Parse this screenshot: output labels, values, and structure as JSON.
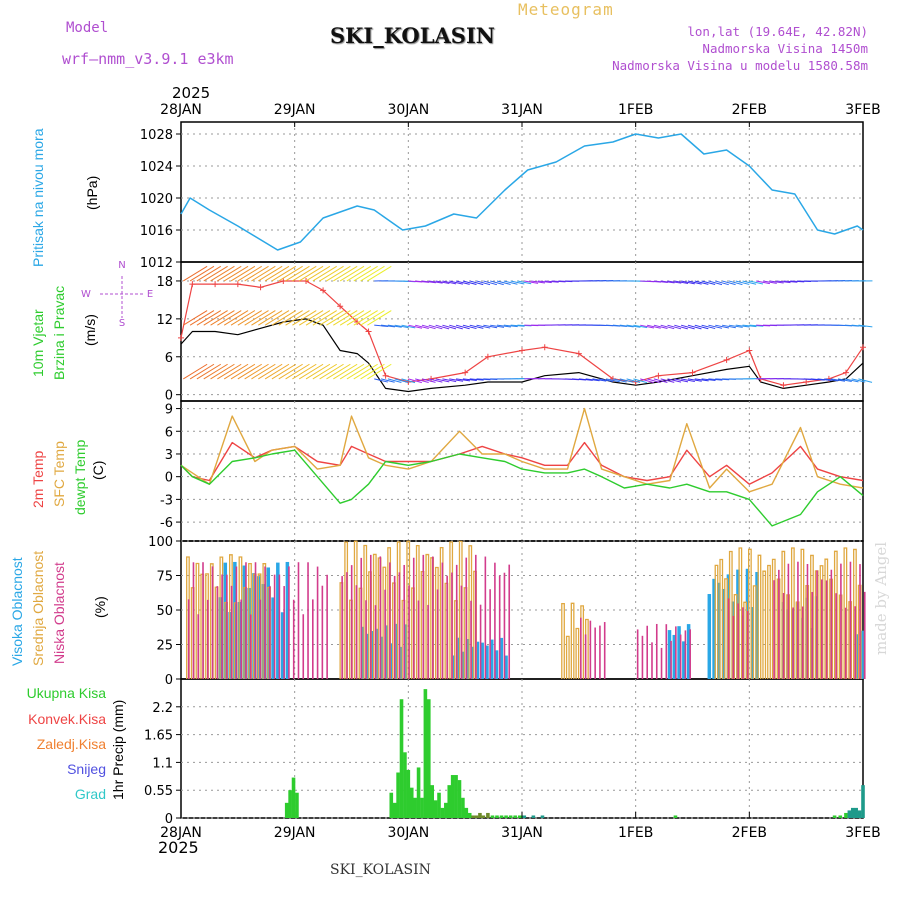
{
  "header": {
    "model_label": "Model",
    "model_name": "wrf—nmm_v3.9.1 e3km",
    "station": "SKI_KOLASIN",
    "product": "Meteogram",
    "lonlat": "lon,lat (19.64E, 42.82N)",
    "elevation": "Nadmorska Visina 1450m",
    "model_elevation": "Nadmorska Visina u modelu 1580.58m",
    "year": "2025"
  },
  "footer": {
    "station": "SKI_KOLASIN",
    "year": "2025",
    "watermark": "made by Angel"
  },
  "x_axis": {
    "labels": [
      "28JAN",
      "29JAN",
      "30JAN",
      "31JAN",
      "1FEB",
      "2FEB",
      "3FEB"
    ]
  },
  "wind_compass": {
    "n": "N",
    "e": "E",
    "w": "W",
    "s": "S"
  },
  "colors": {
    "pressure": "#2aa7e6",
    "wind_speed": "#000000",
    "gust": "#ee4444",
    "temp_2m": "#ee4444",
    "temp_sfc": "#e0a840",
    "dewpoint": "#2ecc2e",
    "cloud_high": "#2aa7e6",
    "cloud_mid": "#e0a840",
    "cloud_low": "#d23c8c",
    "precip_total": "#2ecc2e",
    "precip_conv": "#ee4444",
    "precip_frozen": "#f08030",
    "precip_snow": "#5050e0",
    "precip_hail": "#30c8c8"
  },
  "chart_data": [
    {
      "type": "line",
      "id": "pressure",
      "title": "Pritisak na nivou mora",
      "ylabel": "(hPa)",
      "ylim": [
        1012,
        1029.5
      ],
      "yticks": [
        1012,
        1016,
        1020,
        1024,
        1028
      ],
      "x_days": [
        0,
        0.08,
        0.25,
        0.5,
        0.85,
        1.05,
        1.25,
        1.55,
        1.7,
        1.95,
        2.15,
        2.4,
        2.6,
        2.85,
        3.05,
        3.3,
        3.55,
        3.8,
        4.0,
        4.2,
        4.4,
        4.6,
        4.8,
        5.0,
        5.2,
        5.4,
        5.6,
        5.75,
        5.95,
        6.0
      ],
      "series": [
        {
          "name": "MSLP",
          "values": [
            1018,
            1020,
            1018.5,
            1016.5,
            1013.5,
            1014.5,
            1017.5,
            1019,
            1018.5,
            1016,
            1016.5,
            1018,
            1017.5,
            1021,
            1023.5,
            1024.5,
            1026.5,
            1027,
            1028,
            1027.5,
            1028,
            1025.5,
            1026,
            1024,
            1021,
            1020.5,
            1016,
            1015.5,
            1016.5,
            1016
          ]
        }
      ]
    },
    {
      "type": "line",
      "id": "wind",
      "title": "10m Vjetar Brzina i Pravac",
      "ylabel": "(m/s)",
      "ylim": [
        -1,
        21
      ],
      "yticks": [
        0,
        6,
        12,
        18
      ],
      "x_days": [
        0,
        0.1,
        0.3,
        0.5,
        0.7,
        0.9,
        1.1,
        1.25,
        1.4,
        1.55,
        1.65,
        1.8,
        2.0,
        2.2,
        2.5,
        2.7,
        3.0,
        3.2,
        3.5,
        3.8,
        4.0,
        4.2,
        4.5,
        4.8,
        5.0,
        5.1,
        5.3,
        5.5,
        5.7,
        5.85,
        6.0
      ],
      "series": [
        {
          "name": "wind speed",
          "values": [
            8,
            10,
            10,
            9.5,
            10.5,
            11.5,
            12,
            11,
            7,
            6.5,
            5,
            1,
            0.5,
            1,
            1.5,
            2,
            2,
            3,
            3.5,
            2,
            1.5,
            2,
            3,
            4,
            4.5,
            2,
            1,
            1.5,
            2,
            2.5,
            5
          ]
        },
        {
          "name": "gust",
          "values": [
            9,
            17.5,
            17.5,
            17.5,
            17,
            18,
            18,
            16.5,
            14,
            11.5,
            10,
            3,
            2,
            2.5,
            3.5,
            6,
            7,
            7.5,
            6.5,
            2.5,
            2,
            3,
            3.5,
            5.5,
            7,
            2.5,
            1.5,
            2,
            2.5,
            3.5,
            7.5
          ]
        }
      ]
    },
    {
      "type": "line",
      "id": "temperature",
      "title": "2m Temp / SFC Temp / dewpt Temp",
      "ylabel": "(C)",
      "ylim": [
        -8.5,
        10
      ],
      "yticks": [
        -6,
        -3,
        0,
        3,
        6,
        9
      ],
      "x_days": [
        0,
        0.1,
        0.25,
        0.45,
        0.65,
        0.8,
        1.0,
        1.2,
        1.4,
        1.5,
        1.65,
        1.8,
        2.0,
        2.2,
        2.45,
        2.65,
        2.85,
        3.0,
        3.2,
        3.4,
        3.55,
        3.7,
        3.9,
        4.1,
        4.3,
        4.45,
        4.65,
        4.8,
        5.0,
        5.2,
        5.45,
        5.6,
        5.8,
        6.0
      ],
      "series": [
        {
          "name": "2m Temp",
          "values": [
            1.5,
            0,
            -0.5,
            4.5,
            2.5,
            3.5,
            4,
            2,
            1.5,
            4,
            3,
            2,
            2,
            2,
            3,
            4,
            3,
            2.5,
            1.5,
            1.5,
            4.5,
            1.5,
            0,
            -0.5,
            0,
            3.5,
            0,
            1.5,
            -1,
            0.5,
            4,
            1,
            0,
            -0.5
          ]
        },
        {
          "name": "SFC Temp",
          "values": [
            1.5,
            0.5,
            -1,
            8,
            2,
            3.5,
            4,
            1,
            1.5,
            8,
            2.5,
            1.5,
            1,
            2,
            6,
            3,
            3,
            2,
            1,
            1,
            9,
            1,
            0,
            -1,
            -0.5,
            7,
            -1.5,
            1,
            -2,
            -1,
            6.5,
            0,
            -1,
            -1.5
          ]
        },
        {
          "name": "dewpt Temp",
          "values": [
            1.5,
            0,
            -1,
            2,
            2.5,
            3,
            3.5,
            0,
            -3.5,
            -3,
            -1,
            2,
            1.5,
            2,
            3,
            2.5,
            2,
            1,
            0.5,
            0.5,
            1,
            0,
            -1.5,
            -1,
            -1.5,
            -1,
            -2,
            -2,
            -3,
            -6.5,
            -5,
            -2,
            0,
            -2.5
          ]
        }
      ]
    },
    {
      "type": "bar",
      "id": "clouds",
      "title": "Visoka Oblacnost / Srednja Oblacnost / Niska Oblacnost",
      "ylabel": "(%)",
      "ylim": [
        0,
        100
      ],
      "yticks": [
        0,
        25,
        50,
        75,
        100
      ],
      "series": [
        {
          "name": "Visoka Oblacnost",
          "segments": [
            [
              0.35,
              0.95,
              85
            ],
            [
              1.6,
              2.0,
              40
            ],
            [
              2.4,
              2.9,
              30
            ],
            [
              4.3,
              4.5,
              40
            ],
            [
              4.65,
              5.1,
              80
            ],
            [
              5.3,
              5.6,
              60
            ],
            [
              5.95,
              6.0,
              40
            ]
          ]
        },
        {
          "name": "Srednja Oblacnost",
          "segments": [
            [
              0.05,
              0.8,
              90
            ],
            [
              1.4,
              2.6,
              100
            ],
            [
              3.35,
              3.6,
              55
            ],
            [
              4.7,
              6.0,
              95
            ]
          ]
        },
        {
          "name": "Niska Oblacnost",
          "segments": [
            [
              0.05,
              1.3,
              85
            ],
            [
              1.4,
              2.9,
              90
            ],
            [
              3.5,
              3.75,
              45
            ],
            [
              4.0,
              4.5,
              40
            ],
            [
              4.8,
              5.0,
              60
            ],
            [
              5.2,
              6.0,
              85
            ]
          ]
        }
      ]
    },
    {
      "type": "bar",
      "id": "precip",
      "title": "1hr Precip",
      "ylabel": "1hr Precip (mm)",
      "ylim": [
        0,
        2.75
      ],
      "yticks": [
        0,
        0.55,
        1.1,
        1.65,
        2.2
      ],
      "legend": [
        "Ukupna Kisa",
        "Konvek.Kisa",
        "Zaledj.Kisa",
        "Snijeg",
        "Grad"
      ],
      "x_days": [
        0.93,
        0.96,
        0.99,
        1.02,
        1.85,
        1.88,
        1.91,
        1.94,
        1.97,
        2.0,
        2.03,
        2.06,
        2.09,
        2.12,
        2.15,
        2.18,
        2.21,
        2.24,
        2.27,
        2.3,
        2.33,
        2.36,
        2.39,
        2.42,
        2.45,
        2.48,
        2.51,
        2.54,
        2.57,
        2.6,
        2.63,
        2.66,
        2.7,
        2.74,
        2.78,
        2.82,
        2.86,
        2.9,
        2.94,
        2.98,
        3.02,
        3.1,
        3.18,
        4.35,
        5.75,
        5.8,
        5.85,
        5.88,
        5.91,
        5.94,
        5.97,
        6.0
      ],
      "series": [
        {
          "name": "Ukupna Kisa",
          "values": [
            0.3,
            0.55,
            0.8,
            0.5,
            0.5,
            0.3,
            0.9,
            2.35,
            1.3,
            0.95,
            0.6,
            0.4,
            1.0,
            0.4,
            2.55,
            2.35,
            0.65,
            0.35,
            0.5,
            0.2,
            0.3,
            0.65,
            0.85,
            0.85,
            0.75,
            0.4,
            0.2,
            0.1,
            0.05,
            0.05,
            0.1,
            0.05,
            0.1,
            0.05,
            0.05,
            0.05,
            0.05,
            0.05,
            0.05,
            0.05,
            0.05,
            0.05,
            0.05,
            0.05,
            0.05,
            0.05,
            0.1,
            0.15,
            0.2,
            0.2,
            0.15,
            0.65
          ]
        }
      ]
    }
  ]
}
